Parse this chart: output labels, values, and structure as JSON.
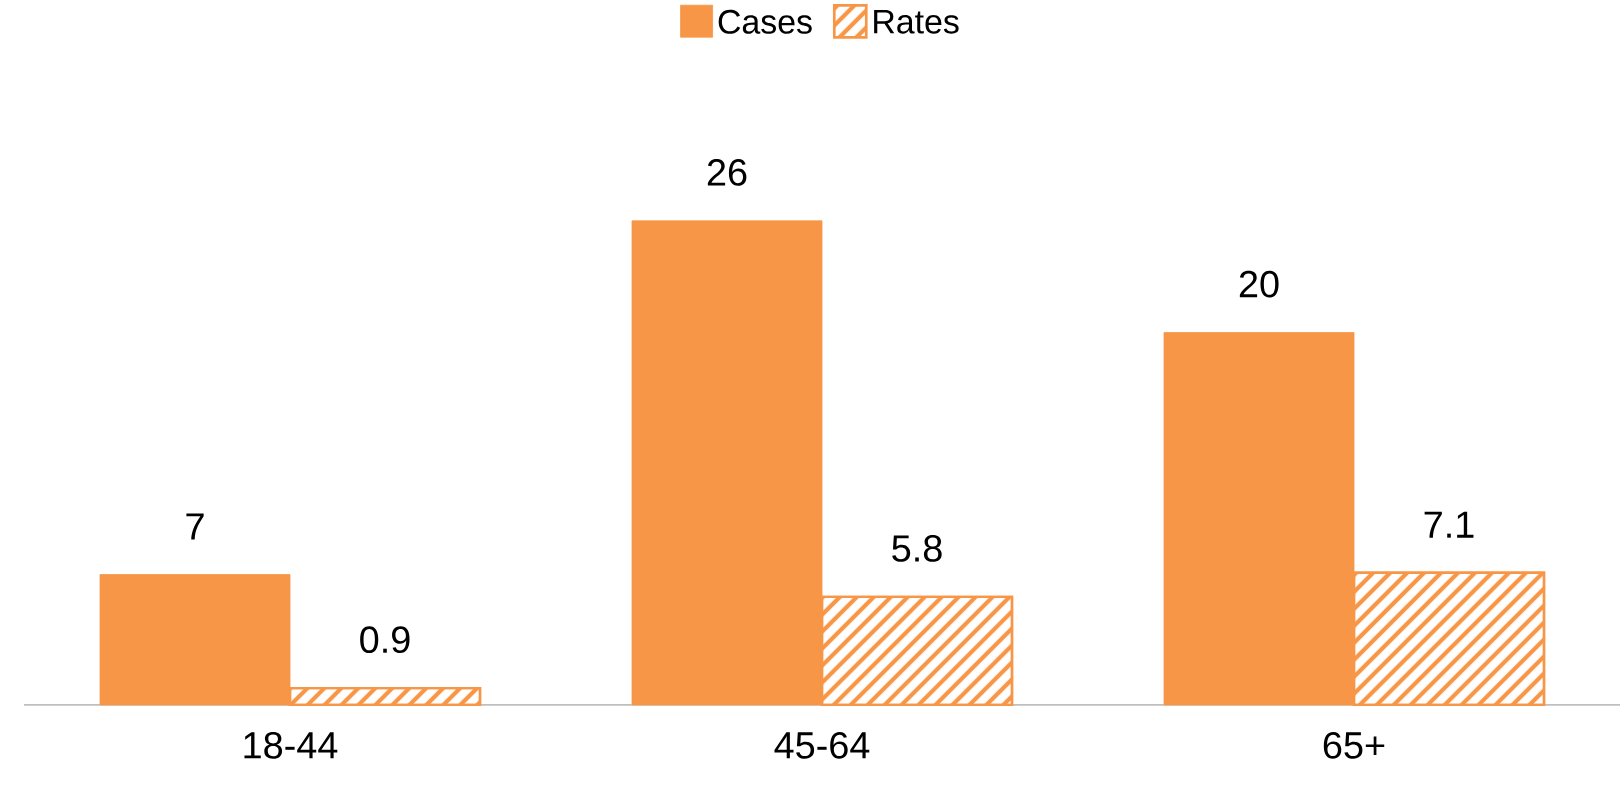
{
  "chart_data": {
    "type": "bar",
    "categories": [
      "18-44",
      "45-64",
      "65+"
    ],
    "series": [
      {
        "name": "Cases",
        "color": "#f79646",
        "values": [
          7,
          26,
          20
        ]
      },
      {
        "name": "Rates",
        "color": "#f79646",
        "values": [
          0.9,
          5.8,
          7.1
        ]
      }
    ],
    "data_labels": true,
    "legend": "top"
  }
}
